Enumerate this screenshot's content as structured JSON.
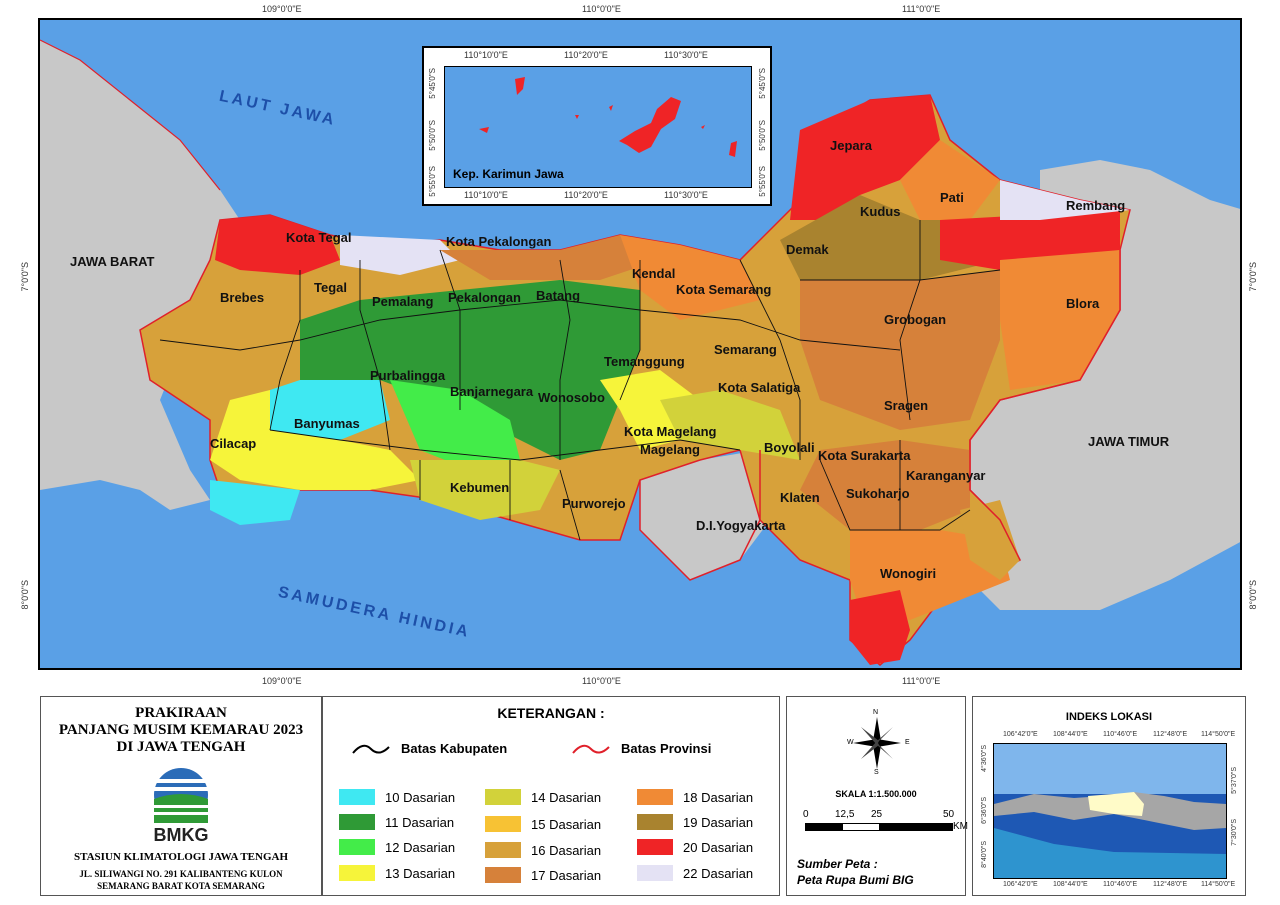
{
  "map": {
    "coords_top": [
      "109°0'0\"E",
      "110°0'0\"E",
      "111°0'0\"E"
    ],
    "coords_bottom": [
      "109°0'0\"E",
      "110°0'0\"E",
      "111°0'0\"E"
    ],
    "coords_left": [
      "7°0'0\"S",
      "8°0'0\"S"
    ],
    "coords_right": [
      "7°0'0\"S",
      "8°0'0\"S"
    ],
    "seas": {
      "north": "LAUT JAWA",
      "south": "SAMUDERA HINDIA"
    },
    "regions_outside": {
      "west": "JAWA BARAT",
      "east": "JAWA TIMUR",
      "south": "D.I.Yogyakarta"
    },
    "districts": [
      "Kota Tegal",
      "Kota Pekalongan",
      "Jepara",
      "Kudus",
      "Pati",
      "Rembang",
      "Demak",
      "Brebes",
      "Tegal",
      "Pemalang",
      "Pekalongan",
      "Batang",
      "Kendal",
      "Kota Semarang",
      "Grobogan",
      "Blora",
      "Temanggung",
      "Semarang",
      "Purbalingga",
      "Banjarnegara",
      "Wonosobo",
      "Kota Salatiga",
      "Sragen",
      "Banyumas",
      "Cilacap",
      "Kota Magelang",
      "Magelang",
      "Boyolali",
      "Kota Surakarta",
      "Karanganyar",
      "Klaten",
      "Sukoharjo",
      "Kebumen",
      "Purworejo",
      "Wonogiri"
    ],
    "inset": {
      "title": "Kep. Karimun Jawa",
      "top_ticks": [
        "110°10'0\"E",
        "110°20'0\"E",
        "110°30'0\"E"
      ],
      "bottom_ticks": [
        "110°10'0\"E",
        "110°20'0\"E",
        "110°30'0\"E"
      ],
      "left_ticks": [
        "5°45'0\"S",
        "5°50'0\"S",
        "5°55'0\"S"
      ],
      "right_ticks": [
        "5°45'0\"S",
        "5°50'0\"S",
        "5°55'0\"S"
      ]
    }
  },
  "title_panel": {
    "line1": "PRAKIRAAN",
    "line2": "PANJANG MUSIM KEMARAU 2023",
    "line3": "DI JAWA TENGAH",
    "logo_text": "BMKG",
    "station": "STASIUN KLIMATOLOGI JAWA TENGAH",
    "address1": "JL. SILIWANGI NO. 291 KALIBANTENG KULON",
    "address2": "SEMARANG BARAT KOTA SEMARANG"
  },
  "legend": {
    "title": "KETERANGAN :",
    "line_kabupaten": "Batas Kabupaten",
    "line_provinsi": "Batas Provinsi",
    "items": [
      {
        "label": "10 Dasarian",
        "color": "#3fe8f2"
      },
      {
        "label": "11 Dasarian",
        "color": "#2f9a36"
      },
      {
        "label": "12 Dasarian",
        "color": "#43ec49"
      },
      {
        "label": "13 Dasarian",
        "color": "#f6f43a"
      },
      {
        "label": "14 Dasarian",
        "color": "#d2d23a"
      },
      {
        "label": "15 Dasarian",
        "color": "#f7c234"
      },
      {
        "label": "16 Dasarian",
        "color": "#d7a13a"
      },
      {
        "label": "17 Dasarian",
        "color": "#d6813a"
      },
      {
        "label": "18 Dasarian",
        "color": "#f08a35"
      },
      {
        "label": "19 Dasarian",
        "color": "#a9832f"
      },
      {
        "label": "20 Dasarian",
        "color": "#ef2426"
      },
      {
        "label": "22 Dasarian",
        "color": "#e4e2f4"
      }
    ]
  },
  "scale_panel": {
    "scale_text": "SKALA 1:1.500.000",
    "ticks": [
      "0",
      "12,5",
      "25",
      "50"
    ],
    "unit": "KM",
    "compass": {
      "n": "N",
      "s": "S",
      "e": "E",
      "w": "W"
    },
    "source_label": "Sumber Peta :",
    "source_value": "Peta Rupa Bumi BIG"
  },
  "index_panel": {
    "title": "INDEKS LOKASI",
    "top_ticks": [
      "106°42'0\"E",
      "108°44'0\"E",
      "110°46'0\"E",
      "112°48'0\"E",
      "114°50'0\"E"
    ],
    "bottom_ticks": [
      "106°42'0\"E",
      "108°44'0\"E",
      "110°46'0\"E",
      "112°48'0\"E",
      "114°50'0\"E"
    ],
    "left_ticks": [
      "4°36'0\"S",
      "6°36'0\"S",
      "8°40'0\"S"
    ],
    "right_ticks": [
      "5°37'0\"S",
      "7°30'0\"S"
    ]
  },
  "colors": {
    "sea": "#5aa0e6",
    "land_outside": "#c8c8c8",
    "province_border": "#e0202a"
  }
}
